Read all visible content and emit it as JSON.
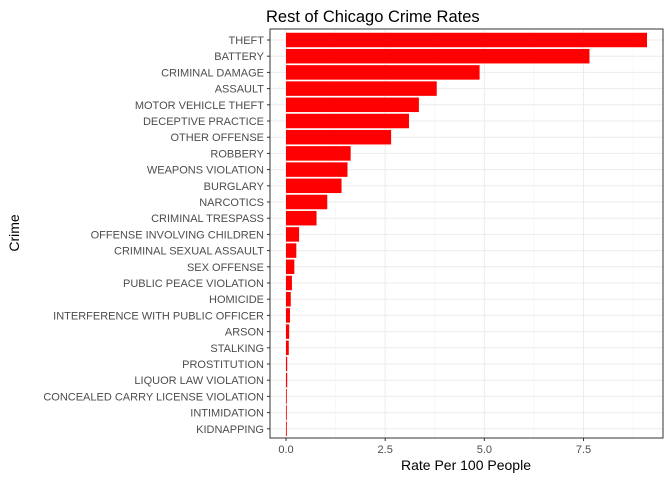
{
  "chart_data": {
    "type": "bar",
    "orientation": "horizontal",
    "title": "Rest of Chicago Crime Rates",
    "xlabel": "Rate Per 100 People",
    "ylabel": "Crime",
    "xlim": [
      0,
      9.1
    ],
    "x_ticks": [
      0.0,
      2.5,
      5.0,
      7.5
    ],
    "x_tick_labels": [
      "0.0",
      "2.5",
      "5.0",
      "7.5"
    ],
    "grid": true,
    "bar_color": "#ff0000",
    "categories": [
      "THEFT",
      "BATTERY",
      "CRIMINAL DAMAGE",
      "ASSAULT",
      "MOTOR VEHICLE THEFT",
      "DECEPTIVE PRACTICE",
      "OTHER OFFENSE",
      "ROBBERY",
      "WEAPONS VIOLATION",
      "BURGLARY",
      "NARCOTICS",
      "CRIMINAL TRESPASS",
      "OFFENSE INVOLVING CHILDREN",
      "CRIMINAL SEXUAL ASSAULT",
      "SEX OFFENSE",
      "PUBLIC PEACE VIOLATION",
      "HOMICIDE",
      "INTERFERENCE WITH PUBLIC OFFICER",
      "ARSON",
      "STALKING",
      "PROSTITUTION",
      "LIQUOR LAW VIOLATION",
      "CONCEALED CARRY LICENSE VIOLATION",
      "INTIMIDATION",
      "KIDNAPPING"
    ],
    "values": [
      9.1,
      7.65,
      4.88,
      3.8,
      3.35,
      3.1,
      2.65,
      1.63,
      1.55,
      1.4,
      1.04,
      0.77,
      0.33,
      0.26,
      0.21,
      0.15,
      0.12,
      0.1,
      0.08,
      0.07,
      0.03,
      0.03,
      0.02,
      0.02,
      0.02
    ]
  }
}
